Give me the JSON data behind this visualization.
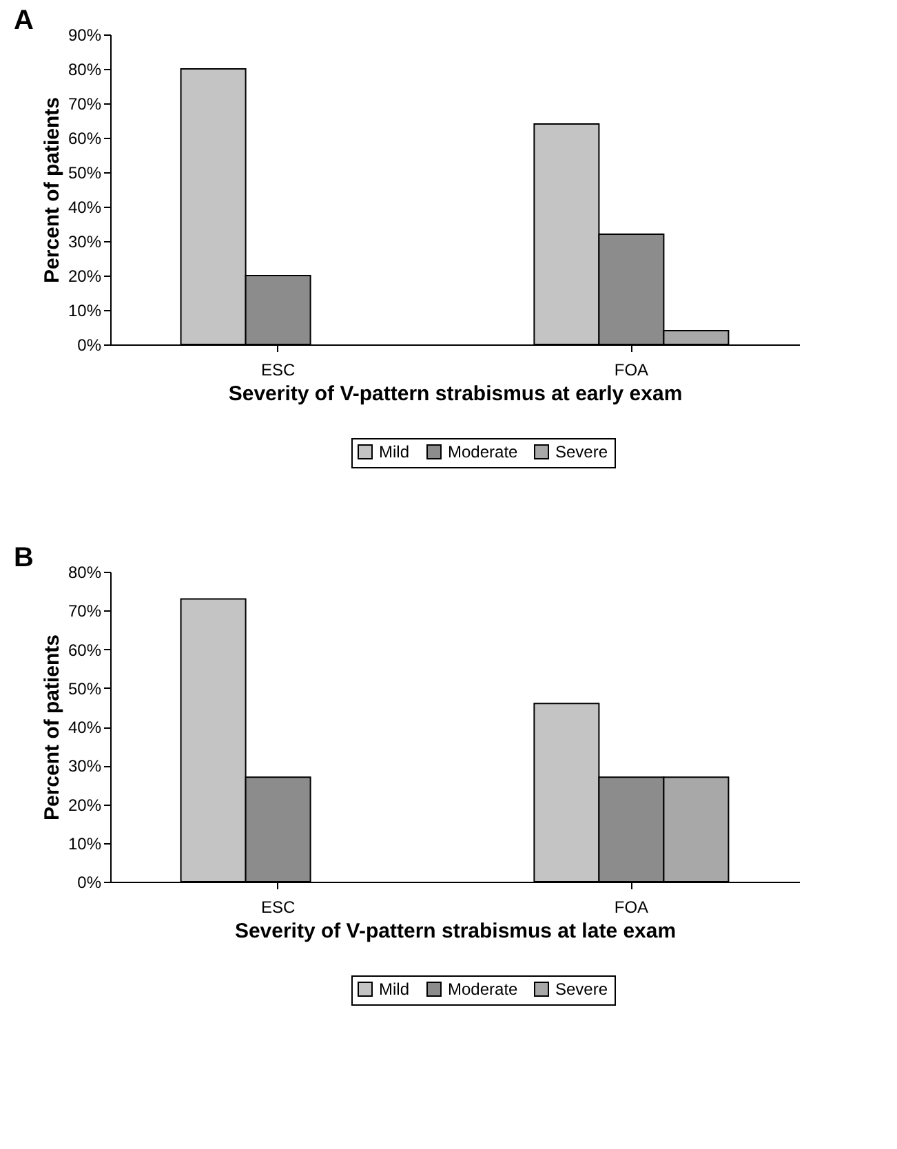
{
  "chart_data": [
    {
      "type": "bar",
      "title": "A",
      "categories": [
        "ESC",
        "FOA"
      ],
      "xlabel": "Severity of V-pattern strabismus at early exam",
      "ylabel": "Percent of patients",
      "series": [
        {
          "name": "Mild",
          "color": "#c4c4c4",
          "values": [
            80,
            64
          ]
        },
        {
          "name": "Moderate",
          "color": "#8c8c8c",
          "values": [
            20,
            32
          ]
        },
        {
          "name": "Severe",
          "color": "#a8a8a8",
          "values": [
            null,
            4
          ]
        }
      ],
      "ylim": [
        0,
        90
      ],
      "yticks": [
        {
          "value": 0,
          "label": "0%"
        },
        {
          "value": 10,
          "label": "10%"
        },
        {
          "value": 20,
          "label": "20%"
        },
        {
          "value": 30,
          "label": "30%"
        },
        {
          "value": 40,
          "label": "40%"
        },
        {
          "value": 50,
          "label": "50%"
        },
        {
          "value": 60,
          "label": "60%"
        },
        {
          "value": 70,
          "label": "70%"
        },
        {
          "value": 80,
          "label": "80%"
        },
        {
          "value": 90,
          "label": "90%"
        }
      ],
      "grid": false,
      "legend": "bottom"
    },
    {
      "type": "bar",
      "title": "B",
      "categories": [
        "ESC",
        "FOA"
      ],
      "xlabel": "Severity of V-pattern strabismus at late exam",
      "ylabel": "Percent of patients",
      "series": [
        {
          "name": "Mild",
          "color": "#c4c4c4",
          "values": [
            73,
            46
          ]
        },
        {
          "name": "Moderate",
          "color": "#8c8c8c",
          "values": [
            27,
            27
          ]
        },
        {
          "name": "Severe",
          "color": "#a8a8a8",
          "values": [
            null,
            27
          ]
        }
      ],
      "ylim": [
        0,
        80
      ],
      "yticks": [
        {
          "value": 0,
          "label": "0%"
        },
        {
          "value": 10,
          "label": "10%"
        },
        {
          "value": 20,
          "label": "20%"
        },
        {
          "value": 30,
          "label": "30%"
        },
        {
          "value": 40,
          "label": "40%"
        },
        {
          "value": 50,
          "label": "50%"
        },
        {
          "value": 60,
          "label": "60%"
        },
        {
          "value": 70,
          "label": "70%"
        },
        {
          "value": 80,
          "label": "80%"
        }
      ],
      "grid": false,
      "legend": "bottom"
    }
  ]
}
